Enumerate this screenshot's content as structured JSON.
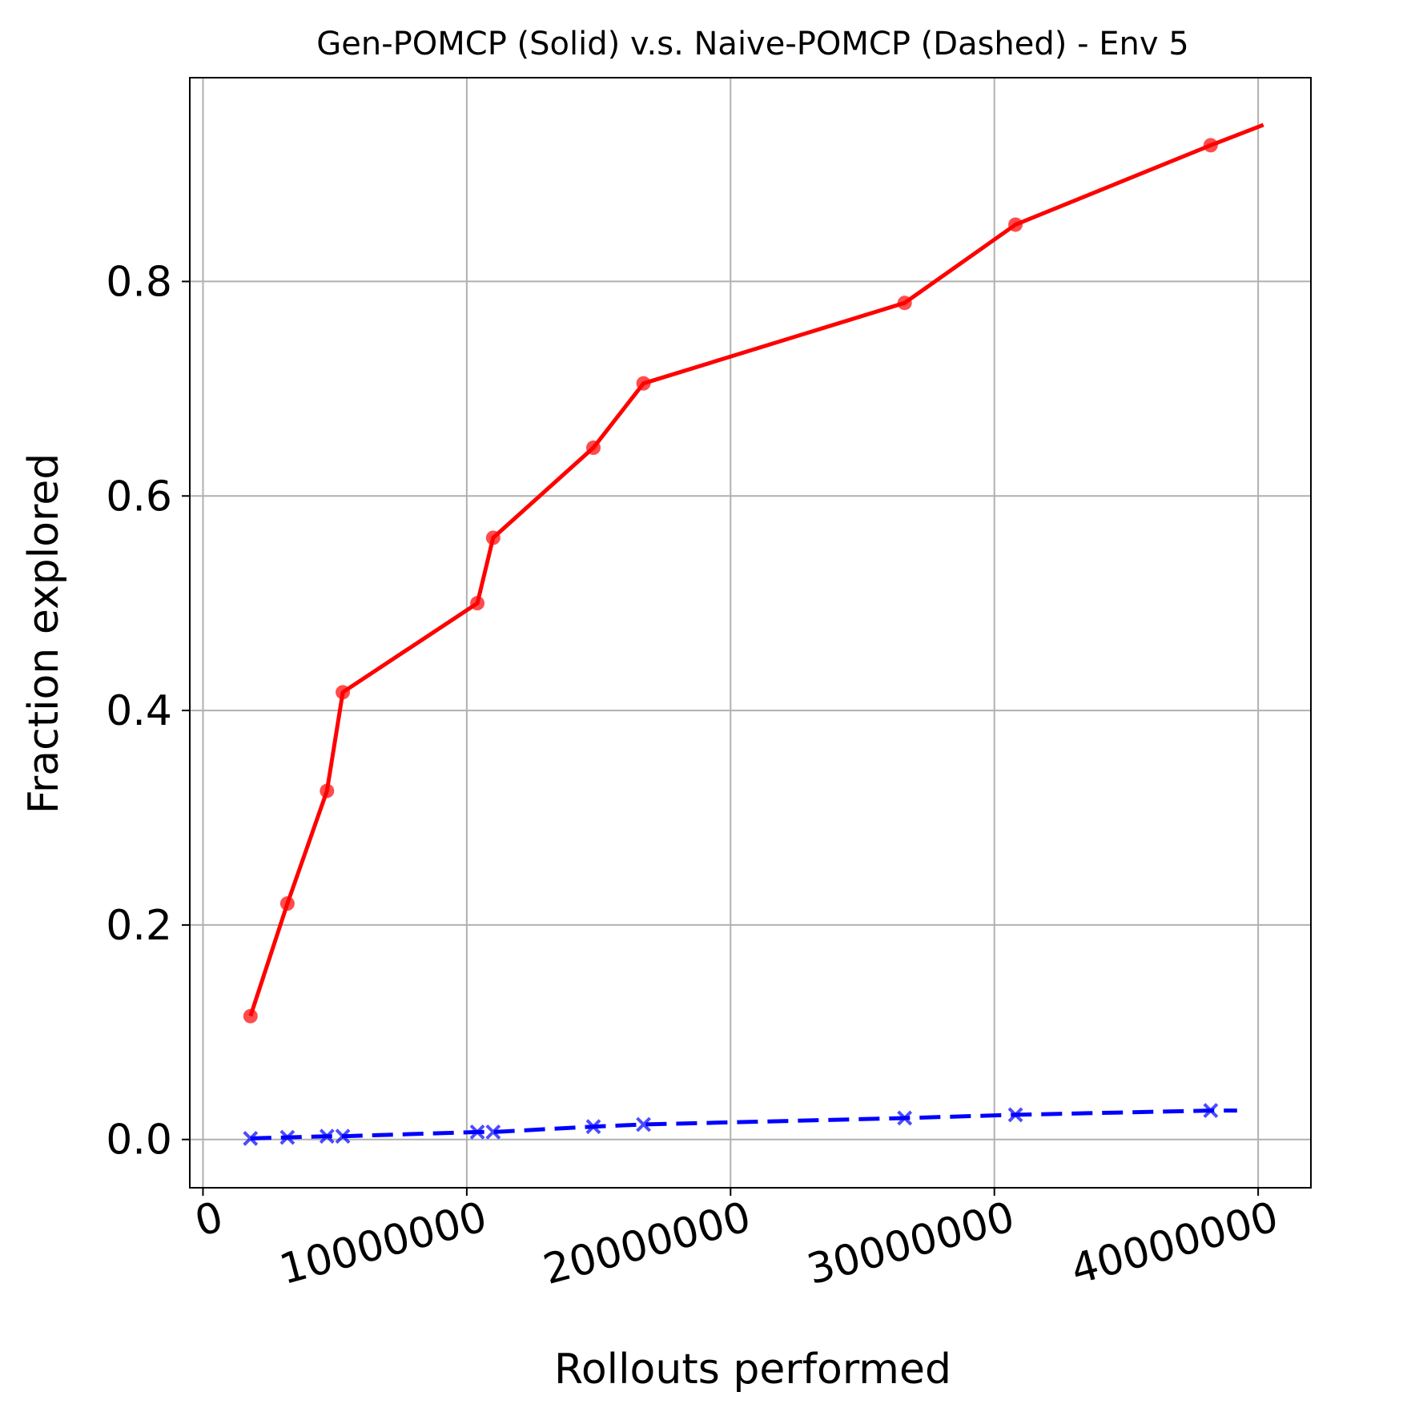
{
  "chart_data": {
    "type": "line",
    "title": "Gen-POMCP (Solid) v.s. Naive-POMCP (Dashed) - Env 5",
    "xlabel": "Rollouts performed",
    "ylabel": "Fraction explored",
    "xlim": [
      -500000,
      42000000
    ],
    "ylim": [
      -0.045,
      0.99
    ],
    "xticks": [
      0,
      10000000,
      20000000,
      30000000,
      40000000
    ],
    "xtick_labels": [
      "0",
      "10000000",
      "20000000",
      "30000000",
      "40000000"
    ],
    "yticks": [
      0.0,
      0.2,
      0.4,
      0.6,
      0.8
    ],
    "ytick_labels": [
      "0.0",
      "0.2",
      "0.4",
      "0.6",
      "0.8"
    ],
    "grid": true,
    "series": [
      {
        "style": "solid",
        "color": "#ff0000",
        "marker": "circle",
        "line_x": [
          1800000,
          3200000,
          4700000,
          5300000,
          10400000,
          11000000,
          14800000,
          16700000,
          26600000,
          30800000,
          38200000,
          40200000
        ],
        "line_y": [
          0.115,
          0.22,
          0.325,
          0.417,
          0.5,
          0.561,
          0.645,
          0.705,
          0.78,
          0.853,
          0.927,
          0.946
        ],
        "marker_x": [
          1800000,
          3200000,
          4700000,
          5300000,
          10400000,
          11000000,
          14800000,
          16700000,
          26600000,
          30800000,
          38200000
        ],
        "marker_y": [
          0.115,
          0.22,
          0.325,
          0.417,
          0.5,
          0.561,
          0.645,
          0.705,
          0.78,
          0.853,
          0.927
        ]
      },
      {
        "style": "dashed",
        "color": "#0000ff",
        "marker": "x",
        "line_x": [
          1800000,
          3200000,
          4700000,
          5300000,
          10400000,
          11000000,
          14800000,
          16700000,
          26600000,
          30800000,
          38200000,
          39200000
        ],
        "line_y": [
          0.001,
          0.002,
          0.003,
          0.003,
          0.007,
          0.007,
          0.012,
          0.014,
          0.02,
          0.023,
          0.027,
          0.027
        ],
        "marker_x": [
          1800000,
          3200000,
          4700000,
          5300000,
          10400000,
          11000000,
          14800000,
          16700000,
          26600000,
          30800000,
          38200000
        ],
        "marker_y": [
          0.001,
          0.002,
          0.003,
          0.003,
          0.007,
          0.007,
          0.012,
          0.014,
          0.02,
          0.023,
          0.027
        ]
      }
    ]
  }
}
